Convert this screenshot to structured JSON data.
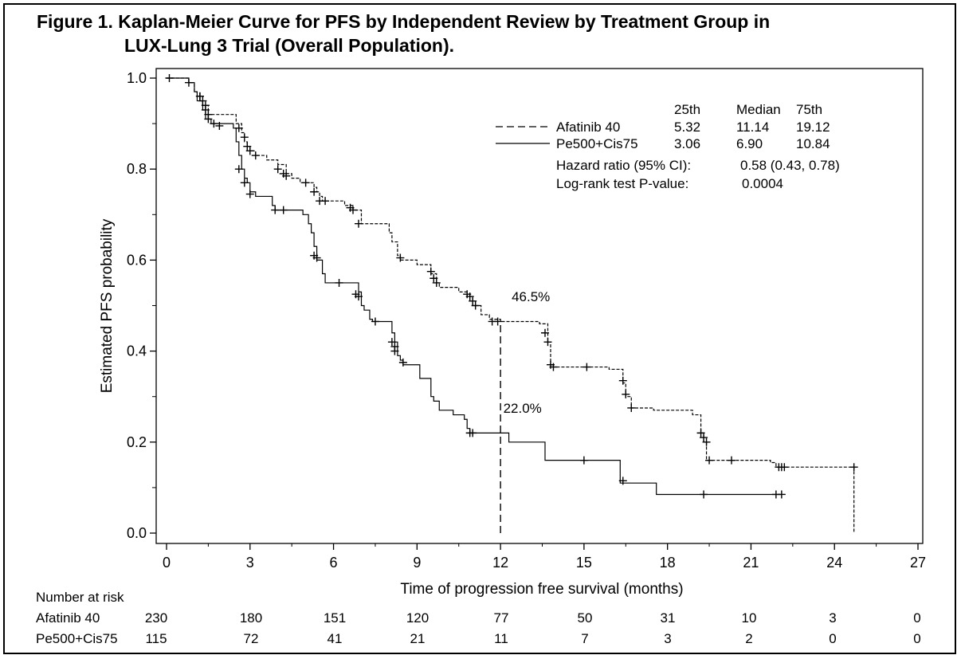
{
  "figure": {
    "title_line1": "Figure 1. Kaplan-Meier Curve for PFS by Independent Review by Treatment Group in",
    "title_line2": "LUX-Lung 3 Trial (Overall Population)."
  },
  "chart_data": {
    "type": "line",
    "subtype": "kaplan-meier",
    "xlabel": "Time of progression free survival (months)",
    "ylabel": "Estimated PFS probability",
    "xlim": [
      0,
      27
    ],
    "ylim": [
      0,
      1
    ],
    "x_ticks": [
      "0",
      "3",
      "6",
      "9",
      "12",
      "15",
      "18",
      "21",
      "24",
      "27"
    ],
    "y_ticks": [
      "0.0",
      "0.2",
      "0.4",
      "0.6",
      "0.8",
      "1.0"
    ],
    "grid": false,
    "legend_position": "top-right",
    "series": [
      {
        "name": "Afatinib 40",
        "line_style": "dashed",
        "steps": [
          [
            0,
            1.0
          ],
          [
            0.8,
            0.99
          ],
          [
            1.0,
            0.97
          ],
          [
            1.1,
            0.96
          ],
          [
            1.2,
            0.95
          ],
          [
            1.3,
            0.94
          ],
          [
            1.5,
            0.92
          ],
          [
            2.5,
            0.9
          ],
          [
            2.7,
            0.88
          ],
          [
            2.8,
            0.86
          ],
          [
            2.9,
            0.85
          ],
          [
            3.0,
            0.84
          ],
          [
            3.2,
            0.83
          ],
          [
            3.6,
            0.82
          ],
          [
            4.0,
            0.81
          ],
          [
            4.3,
            0.79
          ],
          [
            4.5,
            0.78
          ],
          [
            4.8,
            0.77
          ],
          [
            5.3,
            0.76
          ],
          [
            5.4,
            0.75
          ],
          [
            5.5,
            0.74
          ],
          [
            5.6,
            0.73
          ],
          [
            6.4,
            0.72
          ],
          [
            6.7,
            0.71
          ],
          [
            7.0,
            0.68
          ],
          [
            7.8,
            0.68
          ],
          [
            8.0,
            0.66
          ],
          [
            8.1,
            0.64
          ],
          [
            8.3,
            0.61
          ],
          [
            8.4,
            0.6
          ],
          [
            9.0,
            0.59
          ],
          [
            9.5,
            0.57
          ],
          [
            9.7,
            0.55
          ],
          [
            9.8,
            0.54
          ],
          [
            10.5,
            0.53
          ],
          [
            10.8,
            0.52
          ],
          [
            11.0,
            0.5
          ],
          [
            11.3,
            0.48
          ],
          [
            11.6,
            0.47
          ],
          [
            12.0,
            0.465
          ],
          [
            13.4,
            0.46
          ],
          [
            13.7,
            0.42
          ],
          [
            13.8,
            0.37
          ],
          [
            13.9,
            0.365
          ],
          [
            15.9,
            0.36
          ],
          [
            16.4,
            0.33
          ],
          [
            16.5,
            0.3
          ],
          [
            16.7,
            0.275
          ],
          [
            17.5,
            0.27
          ],
          [
            18.9,
            0.26
          ],
          [
            19.2,
            0.22
          ],
          [
            19.3,
            0.2
          ],
          [
            19.4,
            0.16
          ],
          [
            21.7,
            0.155
          ],
          [
            21.9,
            0.145
          ],
          [
            24.7,
            0.145
          ],
          [
            24.7,
            0.0
          ]
        ],
        "censor_marks": [
          [
            0.1,
            1.0
          ],
          [
            0.8,
            0.99
          ],
          [
            1.2,
            0.96
          ],
          [
            1.3,
            0.95
          ],
          [
            1.4,
            0.94
          ],
          [
            1.5,
            0.92
          ],
          [
            2.6,
            0.89
          ],
          [
            2.8,
            0.87
          ],
          [
            2.9,
            0.85
          ],
          [
            3.0,
            0.84
          ],
          [
            3.2,
            0.83
          ],
          [
            4.0,
            0.8
          ],
          [
            4.2,
            0.79
          ],
          [
            4.3,
            0.785
          ],
          [
            5.0,
            0.77
          ],
          [
            5.3,
            0.75
          ],
          [
            5.5,
            0.73
          ],
          [
            5.7,
            0.73
          ],
          [
            6.6,
            0.715
          ],
          [
            6.7,
            0.71
          ],
          [
            6.9,
            0.68
          ],
          [
            8.4,
            0.605
          ],
          [
            9.5,
            0.575
          ],
          [
            9.6,
            0.56
          ],
          [
            9.7,
            0.55
          ],
          [
            10.8,
            0.525
          ],
          [
            10.9,
            0.52
          ],
          [
            11.0,
            0.51
          ],
          [
            11.1,
            0.5
          ],
          [
            11.7,
            0.465
          ],
          [
            11.9,
            0.465
          ],
          [
            13.6,
            0.44
          ],
          [
            13.7,
            0.42
          ],
          [
            13.8,
            0.37
          ],
          [
            13.9,
            0.365
          ],
          [
            15.1,
            0.365
          ],
          [
            16.4,
            0.335
          ],
          [
            16.5,
            0.305
          ],
          [
            16.7,
            0.275
          ],
          [
            19.2,
            0.22
          ],
          [
            19.3,
            0.21
          ],
          [
            19.4,
            0.2
          ],
          [
            19.5,
            0.16
          ],
          [
            20.3,
            0.16
          ],
          [
            22.0,
            0.145
          ],
          [
            22.1,
            0.145
          ],
          [
            22.2,
            0.145
          ],
          [
            24.7,
            0.145
          ]
        ]
      },
      {
        "name": "Pe500+Cis75",
        "line_style": "solid",
        "steps": [
          [
            0,
            1.0
          ],
          [
            0.8,
            0.99
          ],
          [
            1.0,
            0.97
          ],
          [
            1.1,
            0.95
          ],
          [
            1.3,
            0.93
          ],
          [
            1.4,
            0.91
          ],
          [
            1.6,
            0.9
          ],
          [
            2.4,
            0.89
          ],
          [
            2.5,
            0.86
          ],
          [
            2.6,
            0.83
          ],
          [
            2.7,
            0.8
          ],
          [
            2.8,
            0.78
          ],
          [
            2.9,
            0.77
          ],
          [
            3.0,
            0.75
          ],
          [
            3.2,
            0.74
          ],
          [
            3.8,
            0.72
          ],
          [
            3.9,
            0.71
          ],
          [
            4.9,
            0.7
          ],
          [
            5.1,
            0.68
          ],
          [
            5.2,
            0.66
          ],
          [
            5.3,
            0.63
          ],
          [
            5.4,
            0.6
          ],
          [
            5.6,
            0.57
          ],
          [
            5.7,
            0.55
          ],
          [
            6.9,
            0.53
          ],
          [
            7.0,
            0.5
          ],
          [
            7.1,
            0.49
          ],
          [
            7.3,
            0.47
          ],
          [
            7.4,
            0.465
          ],
          [
            8.1,
            0.44
          ],
          [
            8.2,
            0.42
          ],
          [
            8.3,
            0.39
          ],
          [
            8.4,
            0.38
          ],
          [
            8.5,
            0.37
          ],
          [
            9.1,
            0.34
          ],
          [
            9.5,
            0.3
          ],
          [
            9.6,
            0.29
          ],
          [
            9.8,
            0.27
          ],
          [
            10.3,
            0.26
          ],
          [
            10.7,
            0.25
          ],
          [
            10.8,
            0.23
          ],
          [
            10.9,
            0.22
          ],
          [
            12.3,
            0.2
          ],
          [
            13.6,
            0.16
          ],
          [
            16.3,
            0.11
          ],
          [
            17.6,
            0.085
          ],
          [
            22.1,
            0.085
          ]
        ],
        "censor_marks": [
          [
            1.2,
            0.96
          ],
          [
            1.4,
            0.93
          ],
          [
            1.5,
            0.91
          ],
          [
            1.7,
            0.9
          ],
          [
            1.9,
            0.895
          ],
          [
            2.6,
            0.8
          ],
          [
            2.8,
            0.77
          ],
          [
            3.0,
            0.745
          ],
          [
            3.9,
            0.71
          ],
          [
            4.2,
            0.71
          ],
          [
            5.3,
            0.61
          ],
          [
            5.4,
            0.605
          ],
          [
            6.2,
            0.55
          ],
          [
            6.8,
            0.525
          ],
          [
            6.9,
            0.52
          ],
          [
            7.5,
            0.465
          ],
          [
            8.1,
            0.42
          ],
          [
            8.2,
            0.41
          ],
          [
            8.2,
            0.4
          ],
          [
            8.5,
            0.375
          ],
          [
            10.9,
            0.22
          ],
          [
            11.0,
            0.22
          ],
          [
            15.0,
            0.16
          ],
          [
            16.4,
            0.115
          ],
          [
            19.3,
            0.085
          ],
          [
            21.9,
            0.085
          ],
          [
            22.1,
            0.085
          ]
        ]
      }
    ],
    "reference_line": {
      "x": 12,
      "y_from": 0.0,
      "y_to": 0.465,
      "style": "dashed"
    },
    "annotations": [
      {
        "text": "46.5%",
        "x": 12.4,
        "y": 0.52
      },
      {
        "text": "22.0%",
        "x": 12.1,
        "y": 0.275
      }
    ],
    "stats_table": {
      "headers": [
        "25th",
        "Median",
        "75th"
      ],
      "rows": [
        {
          "label": "Afatinib 40",
          "line_style": "dashed",
          "values": [
            "5.32",
            "11.14",
            "19.12"
          ]
        },
        {
          "label": "Pe500+Cis75",
          "line_style": "solid",
          "values": [
            "3.06",
            "6.90",
            "10.84"
          ]
        }
      ],
      "hazard_label": "Hazard ratio (95% CI):",
      "hazard_value": "0.58 (0.43, 0.78)",
      "logrank_label": "Log-rank test P-value:",
      "logrank_value": "0.0004"
    },
    "number_at_risk": {
      "title": "Number at risk",
      "time_points": [
        0,
        3,
        6,
        9,
        12,
        15,
        18,
        21,
        24,
        27
      ],
      "rows": [
        {
          "label": "Afatinib 40",
          "values": [
            "230",
            "180",
            "151",
            "120",
            "77",
            "50",
            "31",
            "10",
            "3",
            "0"
          ]
        },
        {
          "label": "Pe500+Cis75",
          "values": [
            "115",
            "72",
            "41",
            "21",
            "11",
            "7",
            "3",
            "2",
            "0",
            "0"
          ]
        }
      ]
    }
  }
}
